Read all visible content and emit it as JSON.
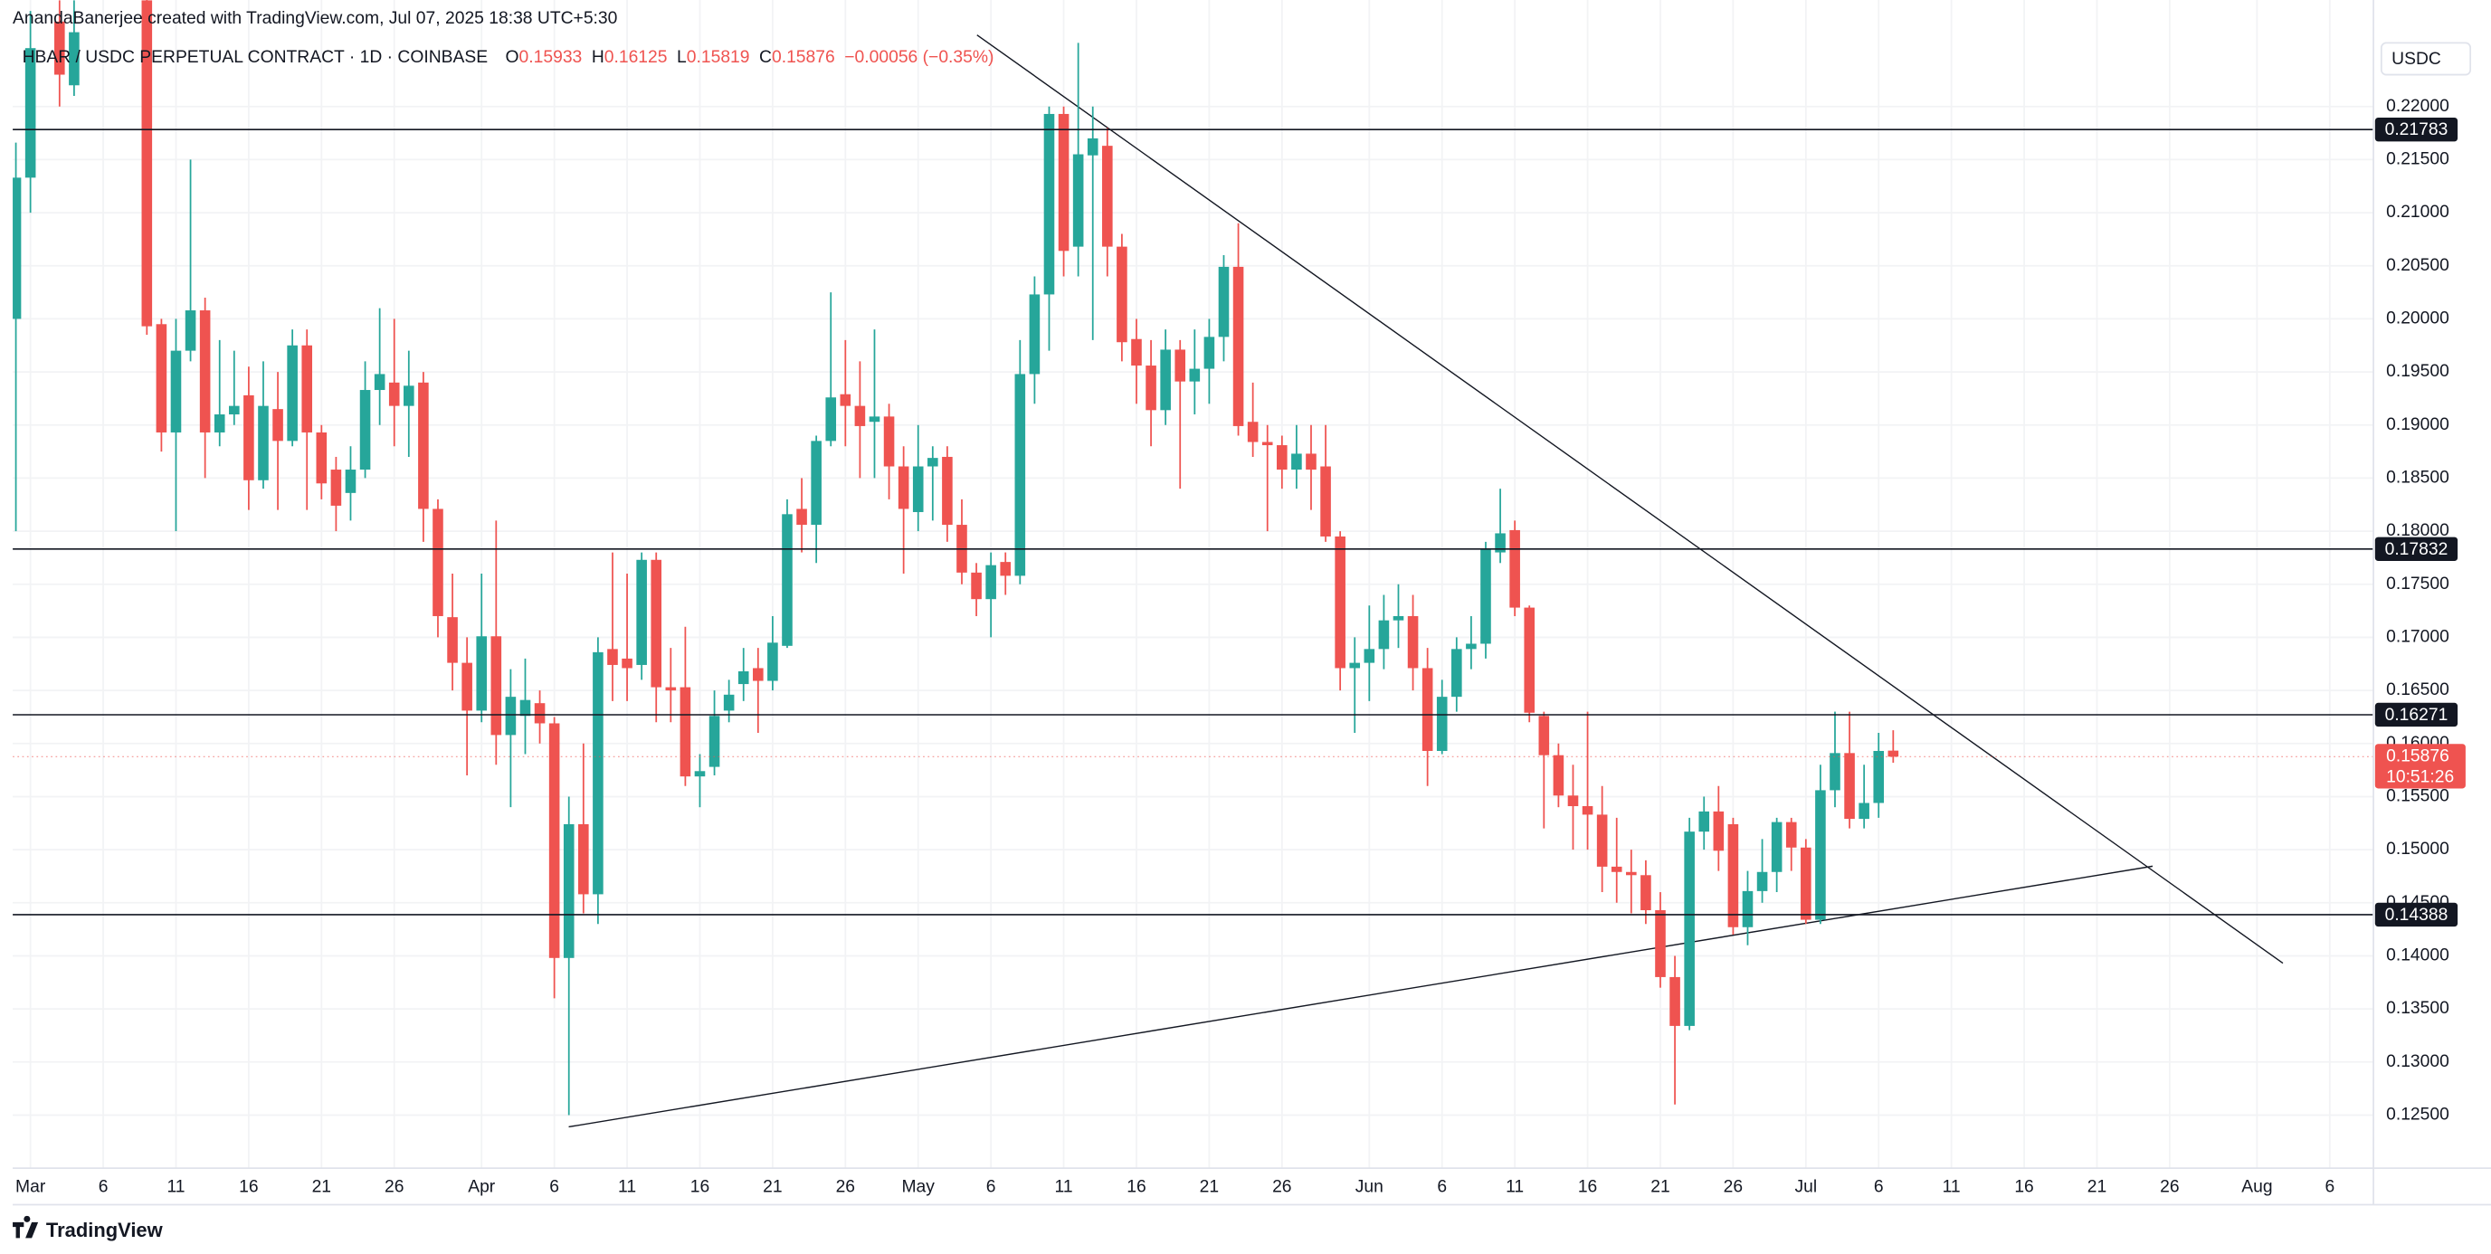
{
  "chart_data": {
    "type": "candlestick",
    "credit": "AnandaBanerjee created with TradingView.com, Jul 07, 2025 18:38 UTC+5:30",
    "title": "HBAR / USDC PERPETUAL CONTRACT · 1D · COINBASE",
    "ohlc_labels": [
      "O",
      "H",
      "L",
      "C"
    ],
    "change_label": "−0.00056 (−0.35%)",
    "currency": "USDC",
    "countdown": "10:51:26",
    "brand": "TradingView",
    "up_color": "#26a69a",
    "down_color": "#ef5350",
    "x": [
      "2025-02-28",
      "2025-03-01",
      "2025-03-03",
      "2025-03-04",
      "2025-03-09",
      "2025-03-10",
      "2025-03-11",
      "2025-03-12",
      "2025-03-13",
      "2025-03-14",
      "2025-03-15",
      "2025-03-16",
      "2025-03-17",
      "2025-03-18",
      "2025-03-19",
      "2025-03-20",
      "2025-03-21",
      "2025-03-22",
      "2025-03-23",
      "2025-03-24",
      "2025-03-25",
      "2025-03-26",
      "2025-03-27",
      "2025-03-28",
      "2025-03-29",
      "2025-03-30",
      "2025-03-31",
      "2025-04-01",
      "2025-04-02",
      "2025-04-03",
      "2025-04-04",
      "2025-04-05",
      "2025-04-06",
      "2025-04-07",
      "2025-04-08",
      "2025-04-09",
      "2025-04-10",
      "2025-04-11",
      "2025-04-12",
      "2025-04-13",
      "2025-04-14",
      "2025-04-15",
      "2025-04-16",
      "2025-04-17",
      "2025-04-18",
      "2025-04-19",
      "2025-04-20",
      "2025-04-21",
      "2025-04-22",
      "2025-04-23",
      "2025-04-24",
      "2025-04-25",
      "2025-04-26",
      "2025-04-27",
      "2025-04-28",
      "2025-04-29",
      "2025-04-30",
      "2025-05-01",
      "2025-05-02",
      "2025-05-03",
      "2025-05-04",
      "2025-05-05",
      "2025-05-06",
      "2025-05-07",
      "2025-05-08",
      "2025-05-09",
      "2025-05-10",
      "2025-05-11",
      "2025-05-12",
      "2025-05-13",
      "2025-05-14",
      "2025-05-15",
      "2025-05-16",
      "2025-05-17",
      "2025-05-18",
      "2025-05-19",
      "2025-05-20",
      "2025-05-21",
      "2025-05-22",
      "2025-05-23",
      "2025-05-24",
      "2025-05-25",
      "2025-05-26",
      "2025-05-27",
      "2025-05-28",
      "2025-05-29",
      "2025-05-30",
      "2025-05-31",
      "2025-06-01",
      "2025-06-02",
      "2025-06-03",
      "2025-06-04",
      "2025-06-05",
      "2025-06-06",
      "2025-06-07",
      "2025-06-08",
      "2025-06-09",
      "2025-06-10",
      "2025-06-11",
      "2025-06-12",
      "2025-06-13",
      "2025-06-14",
      "2025-06-15",
      "2025-06-16",
      "2025-06-17",
      "2025-06-18",
      "2025-06-19",
      "2025-06-20",
      "2025-06-21",
      "2025-06-22",
      "2025-06-23",
      "2025-06-24",
      "2025-06-25",
      "2025-06-26",
      "2025-06-27",
      "2025-06-28",
      "2025-06-29",
      "2025-06-30",
      "2025-07-01",
      "2025-07-02",
      "2025-07-03",
      "2025-07-04",
      "2025-07-05",
      "2025-07-06",
      "2025-07-07"
    ],
    "open": [
      0.2,
      0.2133,
      0.228,
      0.222,
      0.23,
      0.1995,
      0.1893,
      0.197,
      0.2008,
      0.1893,
      0.191,
      0.1928,
      0.1848,
      0.1915,
      0.1885,
      0.1975,
      0.1893,
      0.1858,
      0.1836,
      0.1858,
      0.1933,
      0.194,
      0.1918,
      0.194,
      0.1821,
      0.1719,
      0.1676,
      0.1631,
      0.1701,
      0.1608,
      0.1626,
      0.1638,
      0.1619,
      0.1398,
      0.1524,
      0.1458,
      0.1689,
      0.168,
      0.1674,
      0.1773,
      0.1653,
      0.1653,
      0.1569,
      0.1578,
      0.1631,
      0.1656,
      0.1671,
      0.1659,
      0.1692,
      0.1821,
      0.1806,
      0.1885,
      0.1929,
      0.1918,
      0.1903,
      0.1908,
      0.1861,
      0.1818,
      0.1861,
      0.187,
      0.1806,
      0.1761,
      0.1736,
      0.1771,
      0.1758,
      0.1948,
      0.2023,
      0.2193,
      0.2068,
      0.2154,
      0.2163,
      0.2068,
      0.1981,
      0.1956,
      0.1914,
      0.1971,
      0.1941,
      0.1953,
      0.1983,
      0.2049,
      0.1903,
      0.1884,
      0.1881,
      0.1858,
      0.1873,
      0.1861,
      0.1795,
      0.1671,
      0.1676,
      0.1689,
      0.1716,
      0.172,
      0.1671,
      0.1593,
      0.1644,
      0.1689,
      0.1694,
      0.178,
      0.1801,
      0.1728,
      0.1626,
      0.1589,
      0.1551,
      0.1541,
      0.1533,
      0.1484,
      0.1479,
      0.1476,
      0.1443,
      0.138,
      0.1334,
      0.1517,
      0.1536,
      0.1524,
      0.1427,
      0.1461,
      0.1479,
      0.1526,
      0.1502,
      0.1434,
      0.1556,
      0.1591,
      0.1529,
      0.1544,
      0.15933
    ],
    "high": [
      0.2166,
      0.229,
      0.23,
      0.23,
      0.233,
      0.2,
      0.2,
      0.215,
      0.202,
      0.198,
      0.197,
      0.1955,
      0.196,
      0.195,
      0.199,
      0.199,
      0.19,
      0.187,
      0.188,
      0.196,
      0.201,
      0.2,
      0.197,
      0.195,
      0.183,
      0.176,
      0.17,
      0.176,
      0.181,
      0.167,
      0.168,
      0.165,
      0.1625,
      0.155,
      0.16,
      0.17,
      0.178,
      0.176,
      0.178,
      0.178,
      0.169,
      0.171,
      0.159,
      0.165,
      0.166,
      0.169,
      0.169,
      0.172,
      0.183,
      0.185,
      0.189,
      0.2025,
      0.198,
      0.196,
      0.199,
      0.192,
      0.188,
      0.19,
      0.188,
      0.188,
      0.183,
      0.177,
      0.178,
      0.178,
      0.198,
      0.204,
      0.22,
      0.22,
      0.226,
      0.22,
      0.218,
      0.208,
      0.2,
      0.198,
      0.199,
      0.198,
      0.199,
      0.2,
      0.206,
      0.209,
      0.194,
      0.19,
      0.189,
      0.19,
      0.19,
      0.19,
      0.18,
      0.17,
      0.173,
      0.174,
      0.175,
      0.174,
      0.169,
      0.166,
      0.17,
      0.172,
      0.179,
      0.184,
      0.181,
      0.173,
      0.163,
      0.16,
      0.158,
      0.163,
      0.156,
      0.153,
      0.15,
      0.149,
      0.146,
      0.14,
      0.153,
      0.155,
      0.156,
      0.153,
      0.148,
      0.151,
      0.153,
      0.153,
      0.151,
      0.158,
      0.163,
      0.163,
      0.158,
      0.161,
      0.16125
    ],
    "low": [
      0.18,
      0.21,
      0.22,
      0.221,
      0.1985,
      0.1875,
      0.18,
      0.196,
      0.185,
      0.188,
      0.19,
      0.182,
      0.184,
      0.182,
      0.188,
      0.182,
      0.183,
      0.18,
      0.181,
      0.185,
      0.19,
      0.188,
      0.187,
      0.179,
      0.17,
      0.165,
      0.157,
      0.162,
      0.158,
      0.154,
      0.159,
      0.16,
      0.136,
      0.125,
      0.144,
      0.143,
      0.164,
      0.164,
      0.166,
      0.162,
      0.162,
      0.156,
      0.154,
      0.157,
      0.162,
      0.164,
      0.161,
      0.165,
      0.169,
      0.178,
      0.177,
      0.188,
      0.188,
      0.185,
      0.185,
      0.183,
      0.176,
      0.18,
      0.181,
      0.179,
      0.175,
      0.172,
      0.17,
      0.174,
      0.175,
      0.192,
      0.197,
      0.204,
      0.204,
      0.198,
      0.204,
      0.196,
      0.192,
      0.188,
      0.19,
      0.184,
      0.191,
      0.192,
      0.196,
      0.189,
      0.187,
      0.18,
      0.184,
      0.184,
      0.182,
      0.179,
      0.165,
      0.161,
      0.164,
      0.167,
      0.169,
      0.165,
      0.156,
      0.159,
      0.163,
      0.167,
      0.168,
      0.177,
      0.172,
      0.162,
      0.152,
      0.154,
      0.15,
      0.15,
      0.146,
      0.145,
      0.144,
      0.143,
      0.137,
      0.126,
      0.133,
      0.15,
      0.148,
      0.142,
      0.141,
      0.145,
      0.146,
      0.148,
      0.143,
      0.143,
      0.154,
      0.152,
      0.152,
      0.153,
      0.15819
    ],
    "close": [
      0.2133,
      0.2255,
      0.223,
      0.227,
      0.1993,
      0.1893,
      0.197,
      0.2008,
      0.1893,
      0.191,
      0.1918,
      0.1848,
      0.1918,
      0.1885,
      0.1975,
      0.1893,
      0.1845,
      0.1824,
      0.1858,
      0.1933,
      0.1948,
      0.1918,
      0.1937,
      0.1821,
      0.172,
      0.1676,
      0.1631,
      0.1701,
      0.1608,
      0.1644,
      0.1641,
      0.1619,
      0.1398,
      0.1524,
      0.1458,
      0.1686,
      0.1674,
      0.1671,
      0.1773,
      0.1653,
      0.165,
      0.1569,
      0.1574,
      0.1626,
      0.1646,
      0.1668,
      0.1659,
      0.1695,
      0.1816,
      0.1806,
      0.1885,
      0.1926,
      0.1918,
      0.1899,
      0.1908,
      0.1861,
      0.1821,
      0.1861,
      0.1869,
      0.1806,
      0.1761,
      0.1736,
      0.1768,
      0.1758,
      0.1948,
      0.2023,
      0.2193,
      0.2064,
      0.2155,
      0.217,
      0.2068,
      0.1978,
      0.1956,
      0.1914,
      0.1971,
      0.1941,
      0.1953,
      0.1983,
      0.2049,
      0.1899,
      0.1884,
      0.1881,
      0.1858,
      0.1873,
      0.1858,
      0.1795,
      0.1671,
      0.1676,
      0.1689,
      0.1716,
      0.172,
      0.1671,
      0.1593,
      0.1644,
      0.1689,
      0.1694,
      0.1783,
      0.1798,
      0.1728,
      0.1629,
      0.1589,
      0.1551,
      0.1541,
      0.1533,
      0.1484,
      0.1479,
      0.1476,
      0.1443,
      0.138,
      0.1334,
      0.1517,
      0.1536,
      0.1499,
      0.1427,
      0.1461,
      0.1479,
      0.1526,
      0.1502,
      0.1434,
      0.1556,
      0.1591,
      0.1529,
      0.1544,
      0.1593,
      0.15876
    ],
    "levels": [
      0.21783,
      0.17832,
      0.16271,
      0.14388
    ],
    "xlim": [
      "2025-02-28",
      "2025-08-09"
    ],
    "xticks": [
      {
        "value": "2025-03-01",
        "label": "Mar"
      },
      {
        "value": "2025-03-06",
        "label": "6"
      },
      {
        "value": "2025-03-11",
        "label": "11"
      },
      {
        "value": "2025-03-16",
        "label": "16"
      },
      {
        "value": "2025-03-21",
        "label": "21"
      },
      {
        "value": "2025-03-26",
        "label": "26"
      },
      {
        "value": "2025-04-01",
        "label": "Apr"
      },
      {
        "value": "2025-04-06",
        "label": "6"
      },
      {
        "value": "2025-04-11",
        "label": "11"
      },
      {
        "value": "2025-04-16",
        "label": "16"
      },
      {
        "value": "2025-04-21",
        "label": "21"
      },
      {
        "value": "2025-04-26",
        "label": "26"
      },
      {
        "value": "2025-05-01",
        "label": "May"
      },
      {
        "value": "2025-05-06",
        "label": "6"
      },
      {
        "value": "2025-05-11",
        "label": "11"
      },
      {
        "value": "2025-05-16",
        "label": "16"
      },
      {
        "value": "2025-05-21",
        "label": "21"
      },
      {
        "value": "2025-05-26",
        "label": "26"
      },
      {
        "value": "2025-06-01",
        "label": "Jun"
      },
      {
        "value": "2025-06-06",
        "label": "6"
      },
      {
        "value": "2025-06-11",
        "label": "11"
      },
      {
        "value": "2025-06-16",
        "label": "16"
      },
      {
        "value": "2025-06-21",
        "label": "21"
      },
      {
        "value": "2025-06-26",
        "label": "26"
      },
      {
        "value": "2025-07-01",
        "label": "Jul"
      },
      {
        "value": "2025-07-06",
        "label": "6"
      },
      {
        "value": "2025-07-11",
        "label": "11"
      },
      {
        "value": "2025-07-16",
        "label": "16"
      },
      {
        "value": "2025-07-21",
        "label": "21"
      },
      {
        "value": "2025-07-26",
        "label": "26"
      },
      {
        "value": "2025-08-01",
        "label": "Aug"
      },
      {
        "value": "2025-08-06",
        "label": "6"
      }
    ],
    "ylim": [
      0.12,
      0.22674
    ],
    "yticks": [
      {
        "value": 0.125,
        "label": "0.12500"
      },
      {
        "value": 0.13,
        "label": "0.13000"
      },
      {
        "value": 0.135,
        "label": "0.13500"
      },
      {
        "value": 0.14,
        "label": "0.14000"
      },
      {
        "value": 0.145,
        "label": "0.14500"
      },
      {
        "value": 0.15,
        "label": "0.15000"
      },
      {
        "value": 0.155,
        "label": "0.15500"
      },
      {
        "value": 0.16,
        "label": "0.16000"
      },
      {
        "value": 0.165,
        "label": "0.16500"
      },
      {
        "value": 0.17,
        "label": "0.17000"
      },
      {
        "value": 0.175,
        "label": "0.17500"
      },
      {
        "value": 0.18,
        "label": "0.18000"
      },
      {
        "value": 0.185,
        "label": "0.18500"
      },
      {
        "value": 0.19,
        "label": "0.19000"
      },
      {
        "value": 0.195,
        "label": "0.19500"
      },
      {
        "value": 0.2,
        "label": "0.20000"
      },
      {
        "value": 0.205,
        "label": "0.20500"
      },
      {
        "value": 0.21,
        "label": "0.21000"
      },
      {
        "value": 0.215,
        "label": "0.21500"
      },
      {
        "value": 0.22,
        "label": "0.22000"
      }
    ],
    "grid": true
  }
}
